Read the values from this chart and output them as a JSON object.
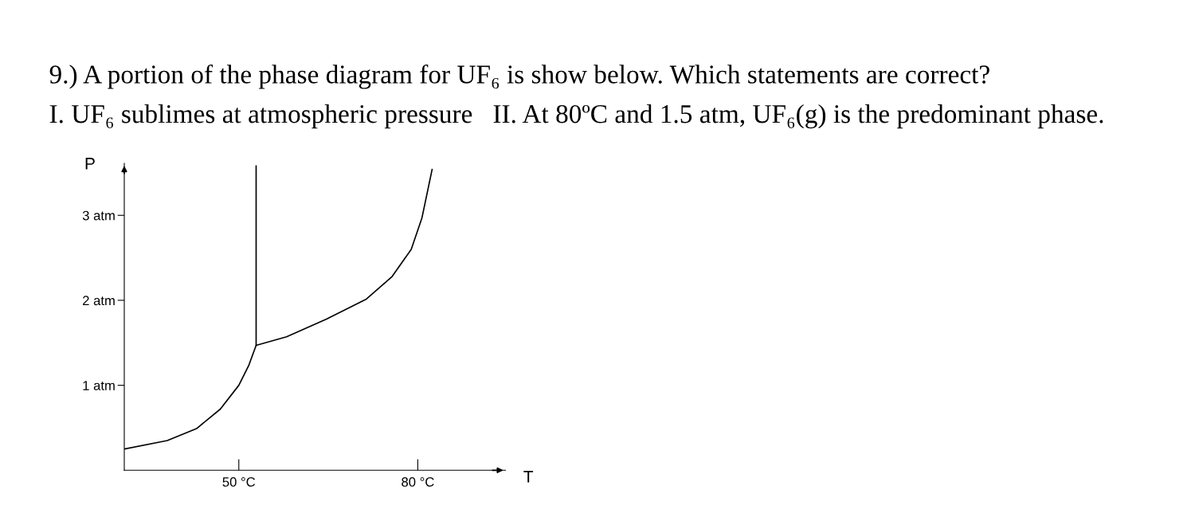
{
  "chart_data": {
    "type": "line",
    "title": "9.) A portion of the phase diagram for UF₆ is show below. Which statements are correct?",
    "subtitle": "I. UF₆ sublimes at atmospheric pressure   II. At 80ºC and 1.5 atm, UF₆(g) is the predominant phase.",
    "xlabel": "T",
    "ylabel": "P",
    "series": [
      {
        "color": "#000000",
        "x": [
          30.8,
          38.0,
          42.9,
          46.9,
          50.0,
          51.7,
          52.9,
          58.0,
          64.7,
          71.3,
          75.7,
          78.9,
          80.7,
          82.4
        ],
        "values": [
          0.25,
          0.35,
          0.49,
          0.72,
          1.0,
          1.24,
          1.47,
          1.57,
          1.78,
          2.01,
          2.28,
          2.6,
          2.97,
          3.54
        ]
      },
      {
        "color": "#000000",
        "x": [
          52.9,
          52.9
        ],
        "values": [
          1.47,
          3.58
        ]
      }
    ],
    "xlim": [
      30.8,
      94.7
    ],
    "ylim": [
      0,
      3.61
    ],
    "xticks": [
      {
        "value": 50,
        "label": "50 °C"
      },
      {
        "value": 80,
        "label": "80 °C"
      }
    ],
    "yticks": [
      {
        "value": 1,
        "label": "1 atm"
      },
      {
        "value": 2,
        "label": "2 atm"
      },
      {
        "value": 3,
        "label": "3 atm"
      }
    ],
    "grid": false,
    "legend": false,
    "marker": "none",
    "line_style": "solid"
  }
}
